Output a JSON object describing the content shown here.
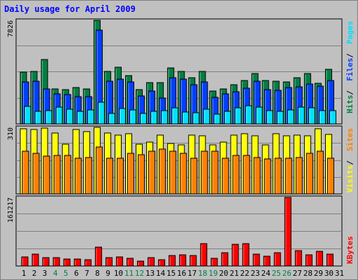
{
  "title": "Daily usage for April 2009",
  "colors": {
    "background": "#c0c0c0",
    "hits": "#008040",
    "files": "#0040ff",
    "pages": "#00e0ff",
    "visits": "#ffff00",
    "sites": "#ff8000",
    "kbytes": "#ff0000",
    "weekend_label": "#008040",
    "weekday_label": "#000000",
    "title": "#0000ff"
  },
  "chart_data": [
    {
      "type": "bar",
      "panel": "hits-files-pages",
      "categories": [
        "1",
        "2",
        "3",
        "4",
        "5",
        "6",
        "7",
        "8",
        "9",
        "10",
        "11",
        "12",
        "13",
        "14",
        "15",
        "16",
        "17",
        "18",
        "19",
        "20",
        "21",
        "22",
        "23",
        "24",
        "25",
        "26",
        "27",
        "28",
        "29",
        "30",
        "31"
      ],
      "weekend_days": [
        "4",
        "5",
        "11",
        "12",
        "18",
        "19",
        "25",
        "26"
      ],
      "ylim": [
        0,
        7826
      ],
      "y_tick_label": "7826",
      "legend": [
        {
          "name": "Hits",
          "color": "#008040"
        },
        {
          "name": "Files",
          "color": "#0040ff"
        },
        {
          "name": "Pages",
          "color": "#00e0ff"
        }
      ],
      "series": [
        {
          "name": "Hits",
          "values": [
            3900,
            3950,
            4850,
            2650,
            2600,
            2750,
            2650,
            7826,
            3950,
            4300,
            3650,
            2600,
            3100,
            3100,
            4250,
            3950,
            3500,
            3950,
            2500,
            2650,
            2950,
            3300,
            3800,
            3300,
            3250,
            3150,
            3500,
            3800,
            3050,
            4100,
            0
          ]
        },
        {
          "name": "Files",
          "values": [
            3150,
            3250,
            2650,
            2300,
            2200,
            2050,
            2050,
            7100,
            3200,
            3400,
            3150,
            2100,
            2500,
            1950,
            3500,
            3400,
            2950,
            3150,
            2000,
            2300,
            2450,
            2700,
            3200,
            2600,
            2550,
            2750,
            2800,
            3000,
            2850,
            3300,
            0
          ]
        },
        {
          "name": "Pages",
          "values": [
            1300,
            950,
            1000,
            1250,
            1100,
            950,
            1050,
            1650,
            800,
            1150,
            1050,
            800,
            950,
            1000,
            1200,
            900,
            850,
            1100,
            750,
            950,
            1200,
            1350,
            1250,
            1000,
            950,
            1050,
            1250,
            1200,
            1000,
            1000,
            0
          ]
        }
      ]
    },
    {
      "type": "bar",
      "panel": "visits-sites",
      "categories": [
        "1",
        "2",
        "3",
        "4",
        "5",
        "6",
        "7",
        "8",
        "9",
        "10",
        "11",
        "12",
        "13",
        "14",
        "15",
        "16",
        "17",
        "18",
        "19",
        "20",
        "21",
        "22",
        "23",
        "24",
        "25",
        "26",
        "27",
        "28",
        "29",
        "30",
        "31"
      ],
      "ylim": [
        0,
        310
      ],
      "y_tick_label": "310",
      "legend": [
        {
          "name": "Visits",
          "color": "#ffff00"
        },
        {
          "name": "Sites",
          "color": "#ff8000"
        }
      ],
      "series": [
        {
          "name": "Visits",
          "values": [
            305,
            300,
            308,
            285,
            233,
            300,
            290,
            310,
            285,
            275,
            282,
            233,
            240,
            275,
            235,
            228,
            275,
            270,
            230,
            242,
            275,
            280,
            272,
            228,
            280,
            270,
            275,
            270,
            305,
            278,
            0
          ]
        },
        {
          "name": "Sites",
          "values": [
            198,
            190,
            175,
            178,
            178,
            168,
            170,
            218,
            168,
            168,
            188,
            183,
            200,
            208,
            198,
            188,
            168,
            198,
            200,
            168,
            180,
            178,
            170,
            162,
            168,
            168,
            170,
            188,
            200,
            168,
            0
          ]
        }
      ]
    },
    {
      "type": "bar",
      "panel": "kbytes",
      "categories": [
        "1",
        "2",
        "3",
        "4",
        "5",
        "6",
        "7",
        "8",
        "9",
        "10",
        "11",
        "12",
        "13",
        "14",
        "15",
        "16",
        "17",
        "18",
        "19",
        "20",
        "21",
        "22",
        "23",
        "24",
        "25",
        "26",
        "27",
        "28",
        "29",
        "30",
        "31"
      ],
      "ylim": [
        0,
        161217
      ],
      "y_tick_label": "161217",
      "legend": [
        {
          "name": "KBytes",
          "color": "#ff0000"
        }
      ],
      "series": [
        {
          "name": "KBytes",
          "values": [
            22000,
            28000,
            19000,
            20000,
            16000,
            16500,
            15000,
            45000,
            19000,
            21500,
            18500,
            12000,
            19000,
            14500,
            25000,
            26000,
            24500,
            52500,
            18000,
            32000,
            51000,
            52000,
            28000,
            23000,
            32000,
            161217,
            37000,
            26000,
            34000,
            27500,
            0
          ]
        }
      ]
    }
  ]
}
